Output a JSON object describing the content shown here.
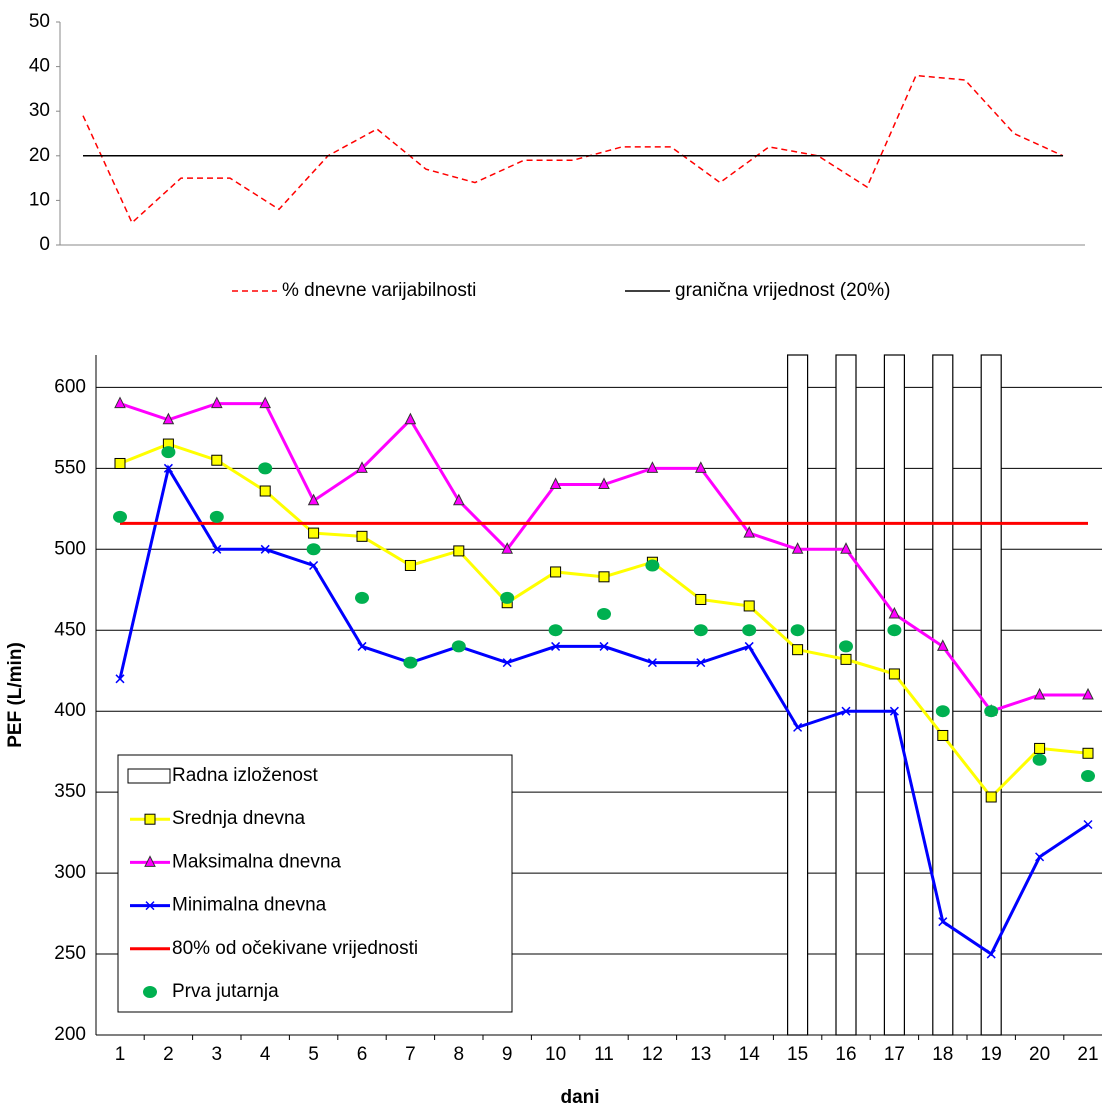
{
  "chart_data": [
    {
      "type": "line",
      "ylim": [
        0,
        50
      ],
      "yticks": [
        0,
        10,
        20,
        30,
        40,
        50
      ],
      "grid": false,
      "series": [
        {
          "name": "% dnevne varijabilnosti",
          "color": "#ff0000",
          "line_style": "dashed",
          "marker": "none",
          "values": [
            29,
            5,
            15,
            15,
            8,
            20,
            26,
            17,
            14,
            19,
            19,
            22,
            22,
            14,
            22,
            20,
            13,
            38,
            37,
            25,
            20
          ]
        },
        {
          "name": "granična vrijednost (20%)",
          "color": "#000000",
          "line_style": "solid",
          "marker": "none",
          "values": [
            20,
            20,
            20,
            20,
            20,
            20,
            20,
            20,
            20,
            20,
            20,
            20,
            20,
            20,
            20,
            20,
            20,
            20,
            20,
            20,
            20
          ]
        }
      ],
      "legend": "bottom"
    },
    {
      "type": "line",
      "ylabel": "PEF (L/min)",
      "xlabel": "dani",
      "categories": [
        "1",
        "2",
        "3",
        "4",
        "5",
        "6",
        "7",
        "8",
        "9",
        "10",
        "11",
        "12",
        "13",
        "14",
        "15",
        "16",
        "17",
        "18",
        "19",
        "20",
        "21"
      ],
      "ylim": [
        200,
        620
      ],
      "yticks": [
        200,
        250,
        300,
        350,
        400,
        450,
        500,
        550,
        600
      ],
      "grid": true,
      "legend": "bottom-left",
      "series": [
        {
          "name": "Radna izloženost",
          "type": "bar",
          "color": "#ffffff",
          "values": [
            null,
            null,
            null,
            null,
            null,
            null,
            null,
            null,
            null,
            null,
            null,
            null,
            null,
            null,
            620,
            620,
            620,
            620,
            620,
            null,
            null
          ]
        },
        {
          "name": "Srednja dnevna",
          "color": "#ffff00",
          "marker": "square",
          "values": [
            553,
            565,
            555,
            536,
            510,
            508,
            490,
            499,
            467,
            486,
            483,
            492,
            469,
            465,
            438,
            432,
            423,
            385,
            347,
            377,
            374
          ]
        },
        {
          "name": "Maksimalna dnevna",
          "color": "#ff00ff",
          "marker": "triangle",
          "values": [
            590,
            580,
            590,
            590,
            530,
            550,
            580,
            530,
            500,
            540,
            540,
            550,
            550,
            510,
            500,
            500,
            460,
            440,
            400,
            410,
            410
          ]
        },
        {
          "name": "Minimalna dnevna",
          "color": "#0000ff",
          "marker": "x",
          "values": [
            420,
            550,
            500,
            500,
            490,
            440,
            430,
            440,
            430,
            440,
            440,
            430,
            430,
            440,
            390,
            400,
            400,
            270,
            250,
            310,
            330
          ]
        },
        {
          "name": "80% od očekivane vrijednosti",
          "color": "#ff0000",
          "marker": "none",
          "values": [
            516,
            516,
            516,
            516,
            516,
            516,
            516,
            516,
            516,
            516,
            516,
            516,
            516,
            516,
            516,
            516,
            516,
            516,
            516,
            516,
            516
          ]
        },
        {
          "name": "Prva jutarnja",
          "color": "#00b050",
          "marker": "circle",
          "line": false,
          "values": [
            520,
            560,
            520,
            550,
            500,
            470,
            430,
            440,
            470,
            450,
            460,
            490,
            450,
            450,
            450,
            440,
            450,
            400,
            400,
            370,
            360
          ]
        }
      ]
    }
  ]
}
